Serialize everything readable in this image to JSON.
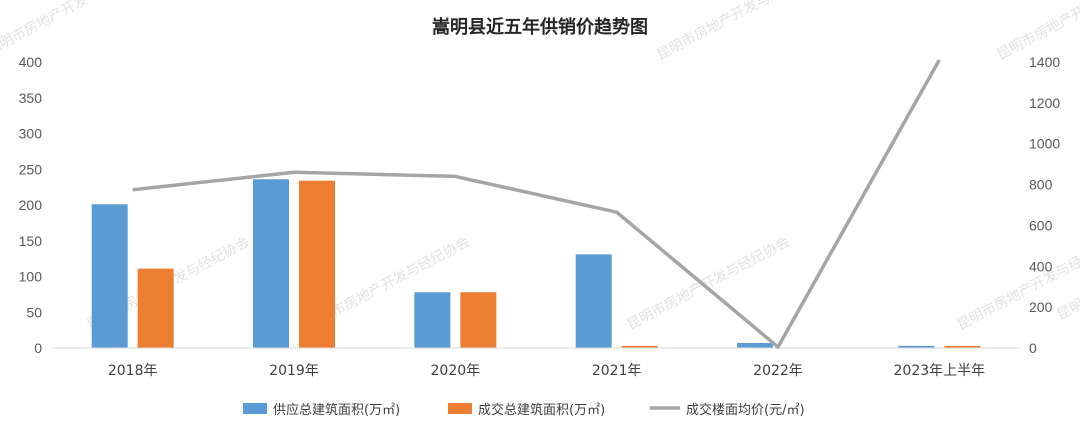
{
  "chart_data": {
    "type": "bar",
    "title": "嵩明县近五年供销价趋势图",
    "categories": [
      "2018年",
      "2019年",
      "2020年",
      "2021年",
      "2022年",
      "2023年上半年"
    ],
    "series": [
      {
        "name": "供应总建筑面积(万㎡)",
        "type": "bar",
        "axis": "left",
        "color": "#5b9bd5",
        "values": [
          201,
          236,
          78,
          131,
          7,
          3
        ]
      },
      {
        "name": "成交总建筑面积(万㎡)",
        "type": "bar",
        "axis": "left",
        "color": "#ed7d31",
        "values": [
          111,
          234,
          78,
          3,
          0,
          3
        ]
      },
      {
        "name": "成交楼面均价(元/㎡)",
        "type": "line",
        "axis": "right",
        "color": "#a5a5a5",
        "values": [
          775,
          860,
          840,
          665,
          5,
          1410
        ]
      }
    ],
    "y_left": {
      "ylim": [
        0,
        400
      ],
      "ticks": [
        0,
        50,
        100,
        150,
        200,
        250,
        300,
        350,
        400
      ]
    },
    "y_right": {
      "ylim": [
        0,
        1400
      ],
      "ticks": [
        0,
        200,
        400,
        600,
        800,
        1000,
        1200,
        1400
      ]
    },
    "grid": false,
    "legend": "bottom"
  },
  "watermark": "昆明市房地产开发与经纪协会"
}
